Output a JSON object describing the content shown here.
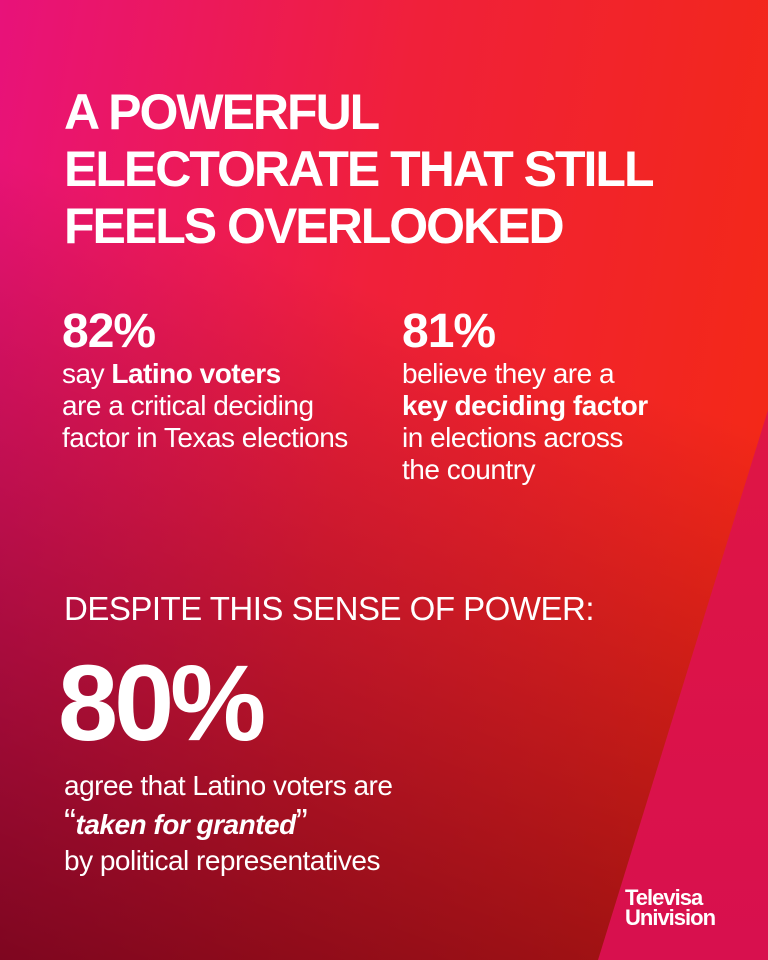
{
  "title": [
    "A POWERFUL",
    "ELECTORATE THAT STILL",
    "FEELS OVERLOOKED"
  ],
  "stat1": {
    "value": "82%",
    "pre": "say ",
    "bold": "Latino voters",
    "post": "are a critical deciding factor in Texas elections"
  },
  "stat2": {
    "value": "81%",
    "pre": "believe they are a",
    "bold": "key deciding factor",
    "post": "in elections across the country"
  },
  "despite": "DESPITE THIS SENSE OF POWER:",
  "main": {
    "value": "80%",
    "line1": "agree that Latino voters are",
    "open_quote": "“",
    "emph": "taken for granted",
    "close_quote": "”",
    "line3": "by political representatives"
  },
  "logo": [
    "Televisa",
    "Univision"
  ],
  "colors": {
    "top_left": "#e8127a",
    "top_right": "#f42a10",
    "bottom_left": "#7a0010",
    "wedge": "#db1048"
  }
}
